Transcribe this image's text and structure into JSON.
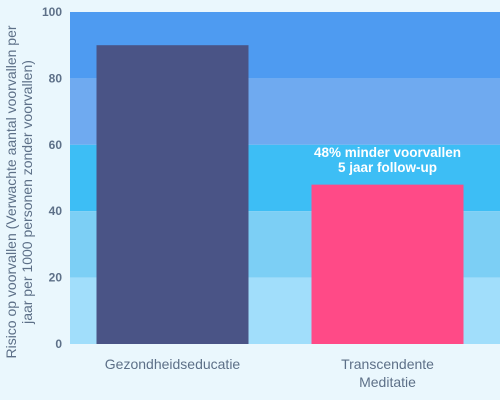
{
  "chart_data": {
    "type": "bar",
    "categories": [
      "Gezondheidseducatie",
      "Transcendente Meditatie"
    ],
    "category_lines": [
      [
        "Gezondheidseducatie"
      ],
      [
        "Transcendente",
        "Meditatie"
      ]
    ],
    "values": [
      90,
      48
    ],
    "bar_colors": [
      "#4a5486",
      "#ff4a87"
    ],
    "ylim": [
      0,
      100
    ],
    "yticks": [
      "0",
      "20",
      "40",
      "60",
      "80",
      "100"
    ],
    "ylabel_lines": [
      "Risico op voorvallen (Verwachte aantal voorvallen per",
      "jaar per 1000 personen zonder voorvallen)"
    ],
    "bands": [
      {
        "from": 80,
        "to": 100,
        "color": "#4e9bf1"
      },
      {
        "from": 60,
        "to": 80,
        "color": "#6faaf0"
      },
      {
        "from": 40,
        "to": 60,
        "color": "#3dbef5"
      },
      {
        "from": 20,
        "to": 40,
        "color": "#7ccff5"
      },
      {
        "from": 0,
        "to": 20,
        "color": "#a1defb"
      }
    ],
    "annotation": {
      "lines": [
        "48% minder voorvallen",
        "5 jaar follow-up"
      ],
      "series_index": 1
    },
    "grid": false,
    "legend": "none"
  }
}
